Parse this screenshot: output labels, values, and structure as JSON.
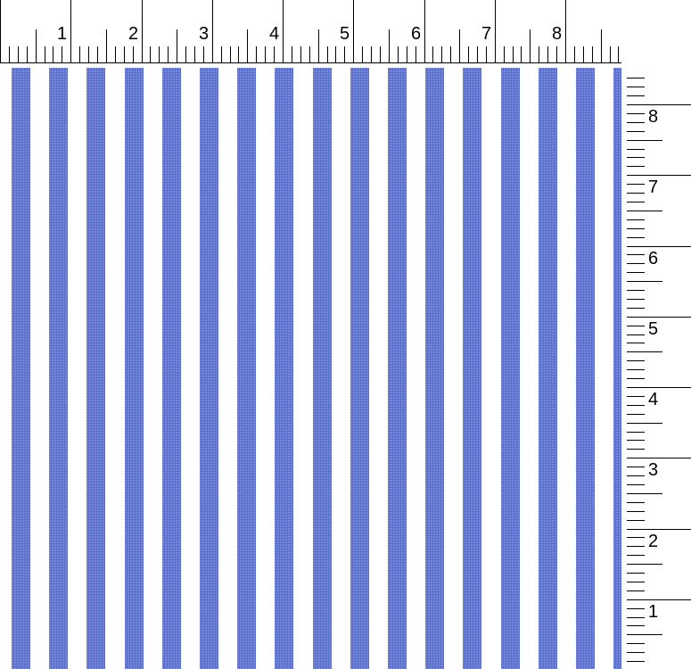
{
  "top_ruler": {
    "labels": [
      "1",
      "2",
      "3",
      "4",
      "5",
      "6",
      "7",
      "8"
    ]
  },
  "side_ruler": {
    "labels": [
      "1",
      "2",
      "3",
      "4",
      "5",
      "6",
      "7",
      "8"
    ]
  },
  "fabric": {
    "pattern": "vertical stripes",
    "stripe_color": "#5a6fc9",
    "background_color": "#ffffff"
  }
}
